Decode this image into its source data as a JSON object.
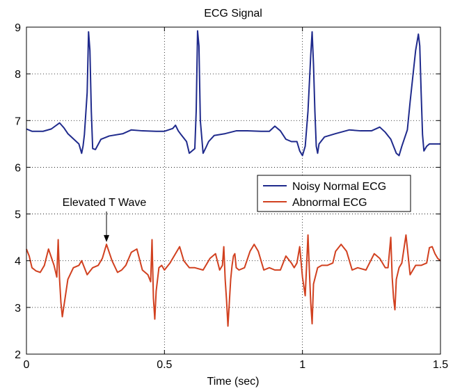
{
  "chart_data": {
    "type": "line",
    "title": "ECG Signal",
    "xlabel": "Time (sec)",
    "ylabel": "",
    "xlim": [
      0,
      1.5
    ],
    "ylim": [
      2,
      9
    ],
    "xticks": [
      0,
      0.5,
      1,
      1.5
    ],
    "xtick_labels": [
      "0",
      "0.5",
      "1",
      "1.5"
    ],
    "yticks": [
      2,
      3,
      4,
      5,
      6,
      7,
      8,
      9
    ],
    "ytick_labels": [
      "2",
      "3",
      "4",
      "5",
      "6",
      "7",
      "8",
      "9"
    ],
    "grid": true,
    "legend": {
      "position": "right-middle"
    },
    "series": [
      {
        "name": "Noisy Normal ECG",
        "color": "#1f2a8c",
        "x": [
          0,
          0.02,
          0.06,
          0.09,
          0.12,
          0.135,
          0.15,
          0.19,
          0.2,
          0.205,
          0.21,
          0.22,
          0.225,
          0.23,
          0.235,
          0.24,
          0.25,
          0.27,
          0.3,
          0.35,
          0.38,
          0.42,
          0.47,
          0.5,
          0.53,
          0.54,
          0.55,
          0.56,
          0.58,
          0.59,
          0.61,
          0.615,
          0.62,
          0.625,
          0.63,
          0.64,
          0.65,
          0.66,
          0.68,
          0.72,
          0.76,
          0.8,
          0.85,
          0.88,
          0.9,
          0.92,
          0.94,
          0.96,
          0.98,
          0.99,
          1.0,
          1.01,
          1.02,
          1.03,
          1.035,
          1.04,
          1.045,
          1.05,
          1.055,
          1.06,
          1.08,
          1.12,
          1.17,
          1.21,
          1.25,
          1.28,
          1.3,
          1.32,
          1.34,
          1.35,
          1.36,
          1.38,
          1.39,
          1.41,
          1.42,
          1.425,
          1.43,
          1.435,
          1.44,
          1.45,
          1.46,
          1.47,
          1.49,
          1.5
        ],
        "y": [
          6.82,
          6.77,
          6.77,
          6.82,
          6.95,
          6.85,
          6.72,
          6.5,
          6.3,
          6.45,
          6.7,
          7.6,
          8.9,
          8.5,
          7.2,
          6.4,
          6.38,
          6.6,
          6.67,
          6.72,
          6.8,
          6.78,
          6.77,
          6.77,
          6.83,
          6.9,
          6.78,
          6.7,
          6.55,
          6.3,
          6.4,
          7.2,
          8.92,
          8.6,
          7.0,
          6.3,
          6.42,
          6.55,
          6.68,
          6.72,
          6.78,
          6.78,
          6.77,
          6.77,
          6.88,
          6.78,
          6.6,
          6.55,
          6.55,
          6.35,
          6.25,
          6.45,
          7.2,
          8.4,
          8.9,
          8.2,
          7.2,
          6.45,
          6.3,
          6.5,
          6.65,
          6.72,
          6.8,
          6.78,
          6.78,
          6.86,
          6.75,
          6.6,
          6.3,
          6.25,
          6.45,
          6.8,
          7.4,
          8.5,
          8.85,
          8.6,
          7.6,
          6.7,
          6.35,
          6.45,
          6.5,
          6.5,
          6.5,
          6.5
        ]
      },
      {
        "name": "Abnormal ECG",
        "color": "#d1401f",
        "x": [
          0,
          0.01,
          0.02,
          0.035,
          0.05,
          0.065,
          0.08,
          0.1,
          0.11,
          0.115,
          0.12,
          0.125,
          0.13,
          0.15,
          0.17,
          0.19,
          0.2,
          0.22,
          0.24,
          0.26,
          0.275,
          0.29,
          0.31,
          0.33,
          0.345,
          0.36,
          0.38,
          0.4,
          0.42,
          0.44,
          0.45,
          0.455,
          0.46,
          0.465,
          0.47,
          0.48,
          0.49,
          0.5,
          0.52,
          0.54,
          0.555,
          0.57,
          0.59,
          0.61,
          0.64,
          0.665,
          0.685,
          0.7,
          0.71,
          0.715,
          0.72,
          0.725,
          0.73,
          0.74,
          0.745,
          0.75,
          0.755,
          0.76,
          0.77,
          0.79,
          0.81,
          0.825,
          0.84,
          0.86,
          0.88,
          0.9,
          0.92,
          0.94,
          0.96,
          0.97,
          0.98,
          0.99,
          1.0,
          1.01,
          1.02,
          1.025,
          1.03,
          1.035,
          1.04,
          1.055,
          1.07,
          1.09,
          1.11,
          1.12,
          1.14,
          1.16,
          1.18,
          1.2,
          1.23,
          1.26,
          1.28,
          1.3,
          1.31,
          1.32,
          1.325,
          1.33,
          1.335,
          1.34,
          1.35,
          1.36,
          1.375,
          1.39,
          1.41,
          1.43,
          1.45,
          1.46,
          1.47,
          1.48,
          1.49,
          1.5
        ],
        "y": [
          4.25,
          4.1,
          3.85,
          3.78,
          3.75,
          3.9,
          4.25,
          3.9,
          3.65,
          4.45,
          3.6,
          3.1,
          2.8,
          3.6,
          3.85,
          3.9,
          4.0,
          3.7,
          3.85,
          3.9,
          4.05,
          4.35,
          4.0,
          3.75,
          3.8,
          3.9,
          4.18,
          4.25,
          3.8,
          3.7,
          3.55,
          4.45,
          3.2,
          2.75,
          3.35,
          3.85,
          3.9,
          3.8,
          3.95,
          4.15,
          4.3,
          4.0,
          3.85,
          3.85,
          3.8,
          4.05,
          4.15,
          3.8,
          3.9,
          4.3,
          3.6,
          3.15,
          2.6,
          3.6,
          3.9,
          4.1,
          4.15,
          3.85,
          3.8,
          3.85,
          4.2,
          4.35,
          4.2,
          3.8,
          3.85,
          3.8,
          3.8,
          4.1,
          3.95,
          3.85,
          3.95,
          4.3,
          3.65,
          3.25,
          4.55,
          3.8,
          3.1,
          2.65,
          3.5,
          3.85,
          3.9,
          3.9,
          3.95,
          4.2,
          4.35,
          4.2,
          3.8,
          3.85,
          3.8,
          4.15,
          4.05,
          3.85,
          3.85,
          4.5,
          3.65,
          3.2,
          2.95,
          3.6,
          3.85,
          3.95,
          4.55,
          3.7,
          3.9,
          3.9,
          3.95,
          4.28,
          4.3,
          4.15,
          4.05,
          4.0
        ]
      }
    ],
    "annotations": [
      {
        "text": "Elevated T Wave",
        "arrow_to": {
          "x": 0.29,
          "y": 4.4
        }
      }
    ]
  }
}
